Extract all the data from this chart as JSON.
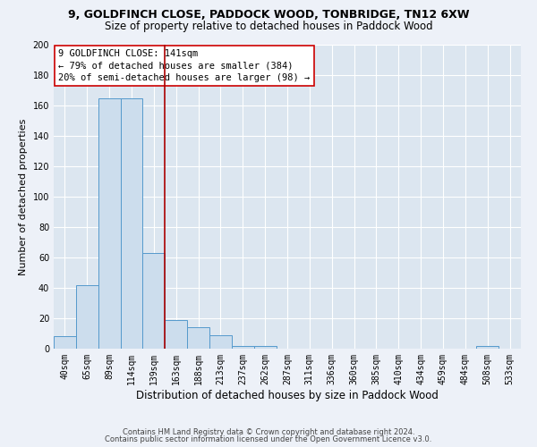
{
  "title1": "9, GOLDFINCH CLOSE, PADDOCK WOOD, TONBRIDGE, TN12 6XW",
  "title2": "Size of property relative to detached houses in Paddock Wood",
  "xlabel": "Distribution of detached houses by size in Paddock Wood",
  "ylabel": "Number of detached properties",
  "bin_labels": [
    "40sqm",
    "65sqm",
    "89sqm",
    "114sqm",
    "139sqm",
    "163sqm",
    "188sqm",
    "213sqm",
    "237sqm",
    "262sqm",
    "287sqm",
    "311sqm",
    "336sqm",
    "360sqm",
    "385sqm",
    "410sqm",
    "434sqm",
    "459sqm",
    "484sqm",
    "508sqm",
    "533sqm"
  ],
  "bar_heights": [
    8,
    42,
    165,
    165,
    63,
    19,
    14,
    9,
    2,
    2,
    0,
    0,
    0,
    0,
    0,
    0,
    0,
    0,
    0,
    2,
    0
  ],
  "bar_color": "#ccdded",
  "bar_edge_color": "#5599cc",
  "red_line_x": 4.5,
  "ylim": [
    0,
    200
  ],
  "yticks": [
    0,
    20,
    40,
    60,
    80,
    100,
    120,
    140,
    160,
    180,
    200
  ],
  "annotation_text": "9 GOLDFINCH CLOSE: 141sqm\n← 79% of detached houses are smaller (384)\n20% of semi-detached houses are larger (98) →",
  "annotation_box_facecolor": "#ffffff",
  "annotation_box_edgecolor": "#cc0000",
  "footnote1": "Contains HM Land Registry data © Crown copyright and database right 2024.",
  "footnote2": "Contains public sector information licensed under the Open Government Licence v3.0.",
  "fig_facecolor": "#edf1f8",
  "plot_facecolor": "#dce6f0",
  "grid_color": "#ffffff",
  "title1_fontsize": 9,
  "title2_fontsize": 8.5,
  "ylabel_fontsize": 8,
  "xlabel_fontsize": 8.5,
  "tick_fontsize": 7,
  "annot_fontsize": 7.5,
  "footnote_fontsize": 6
}
